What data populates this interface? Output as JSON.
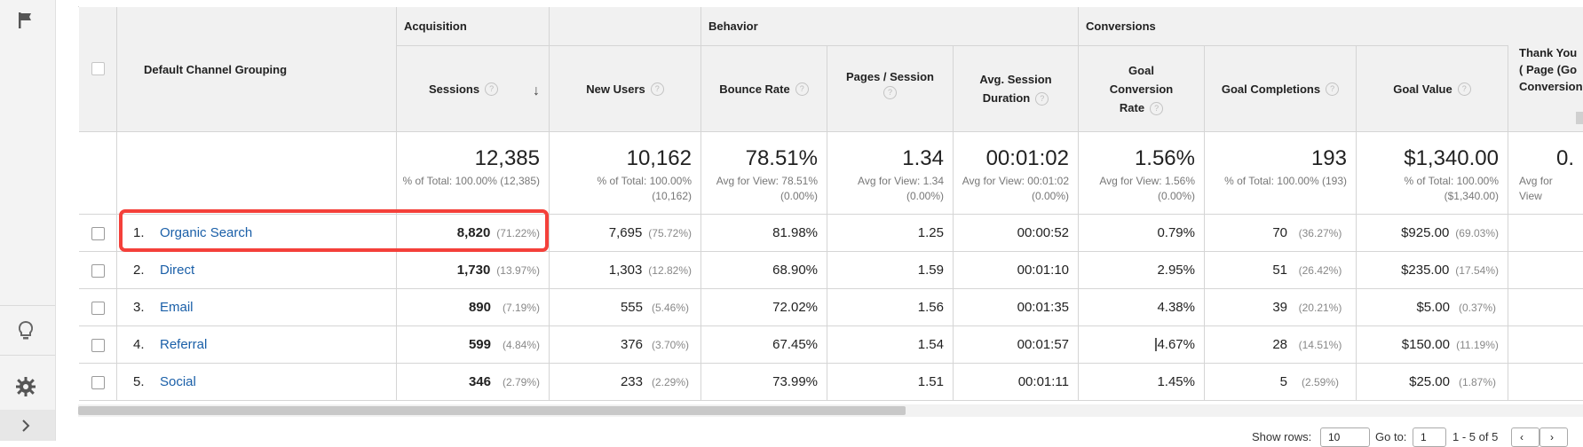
{
  "columns": {
    "channel": "Default Channel Grouping",
    "groups": {
      "acquisition": "Acquisition",
      "behavior": "Behavior",
      "conversions": "Conversions"
    },
    "sessions": "Sessions",
    "new_users": "New Users",
    "bounce_rate": "Bounce Rate",
    "pages_session": "Pages / Session",
    "avg_duration": "Avg. Session Duration",
    "goal_conv_rate": "Goal Conversion Rate",
    "goal_completions": "Goal Completions",
    "goal_value": "Goal Value",
    "thank_you": "Thank You ( Page (Go Conversion"
  },
  "totals": {
    "sessions": {
      "value": "12,385",
      "sub": "% of Total: 100.00% (12,385)"
    },
    "new_users": {
      "value": "10,162",
      "sub": "% of Total: 100.00% (10,162)"
    },
    "bounce_rate": {
      "value": "78.51%",
      "sub": "Avg for View: 78.51% (0.00%)"
    },
    "pages_session": {
      "value": "1.34",
      "sub": "Avg for View: 1.34 (0.00%)"
    },
    "avg_duration": {
      "value": "00:01:02",
      "sub": "Avg for View: 00:01:02 (0.00%)"
    },
    "goal_conv_rate": {
      "value": "1.56%",
      "sub": "Avg for View: 1.56% (0.00%)"
    },
    "goal_completions": {
      "value": "193",
      "sub": "% of Total: 100.00% (193)"
    },
    "goal_value": {
      "value": "$1,340.00",
      "sub": "% of Total: 100.00% ($1,340.00)"
    },
    "thank_you": {
      "value": "0.",
      "sub": "Avg for View"
    }
  },
  "rows": [
    {
      "index": "1.",
      "channel": "Organic Search",
      "sessions": "8,820",
      "sessions_pct": "(71.22%)",
      "new_users": "7,695",
      "new_users_pct": "(75.72%)",
      "bounce_rate": "81.98%",
      "pages_session": "1.25",
      "avg_duration": "00:00:52",
      "goal_conv_rate": "0.79%",
      "goal_completions": "70",
      "goal_completions_pct": "(36.27%)",
      "goal_value": "$925.00",
      "goal_value_pct": "(69.03%)"
    },
    {
      "index": "2.",
      "channel": "Direct",
      "sessions": "1,730",
      "sessions_pct": "(13.97%)",
      "new_users": "1,303",
      "new_users_pct": "(12.82%)",
      "bounce_rate": "68.90%",
      "pages_session": "1.59",
      "avg_duration": "00:01:10",
      "goal_conv_rate": "2.95%",
      "goal_completions": "51",
      "goal_completions_pct": "(26.42%)",
      "goal_value": "$235.00",
      "goal_value_pct": "(17.54%)"
    },
    {
      "index": "3.",
      "channel": "Email",
      "sessions": "890",
      "sessions_pct": "(7.19%)",
      "new_users": "555",
      "new_users_pct": "(5.46%)",
      "bounce_rate": "72.02%",
      "pages_session": "1.56",
      "avg_duration": "00:01:35",
      "goal_conv_rate": "4.38%",
      "goal_completions": "39",
      "goal_completions_pct": "(20.21%)",
      "goal_value": "$5.00",
      "goal_value_pct": "(0.37%)"
    },
    {
      "index": "4.",
      "channel": "Referral",
      "sessions": "599",
      "sessions_pct": "(4.84%)",
      "new_users": "376",
      "new_users_pct": "(3.70%)",
      "bounce_rate": "67.45%",
      "pages_session": "1.54",
      "avg_duration": "00:01:57",
      "goal_conv_rate": "4.67%",
      "goal_completions": "28",
      "goal_completions_pct": "(14.51%)",
      "goal_value": "$150.00",
      "goal_value_pct": "(11.19%)"
    },
    {
      "index": "5.",
      "channel": "Social",
      "sessions": "346",
      "sessions_pct": "(2.79%)",
      "new_users": "233",
      "new_users_pct": "(2.29%)",
      "bounce_rate": "73.99%",
      "pages_session": "1.51",
      "avg_duration": "00:01:11",
      "goal_conv_rate": "1.45%",
      "goal_completions": "5",
      "goal_completions_pct": "(2.59%)",
      "goal_value": "$25.00",
      "goal_value_pct": "(1.87%)"
    }
  ],
  "footer": {
    "show_rows_label": "Show rows:",
    "show_rows_value": "10",
    "goto_label": "Go to:",
    "goto_value": "1",
    "range": "1 - 5 of 5"
  },
  "icons": [
    "flag-icon",
    "lightbulb-icon",
    "gear-icon",
    "chevron-right-icon",
    "help-icon",
    "sort-down-arrow-icon",
    "chevron-left-icon"
  ],
  "colors": {
    "link": "#1a5fa8",
    "highlight": "#f4403a",
    "header_bg": "#f1f1f1"
  }
}
